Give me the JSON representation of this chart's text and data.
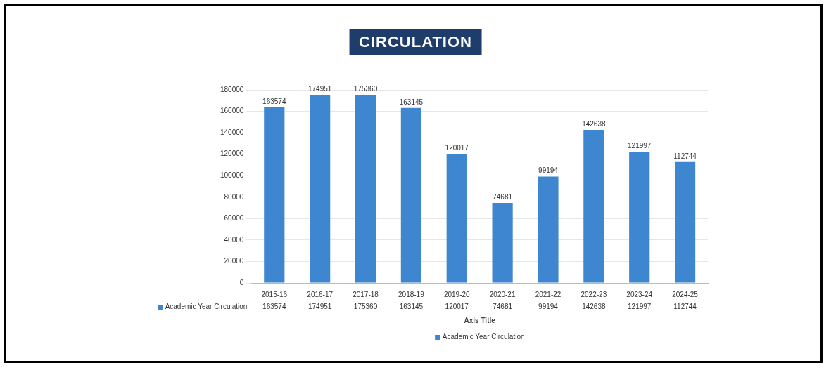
{
  "chart_data": {
    "type": "bar",
    "title": "CIRCULATION",
    "xlabel": "Axis Title",
    "categories": [
      "2015-16",
      "2016-17",
      "2017-18",
      "2018-19",
      "2019-20",
      "2020-21",
      "2021-22",
      "2022-23",
      "2023-24",
      "2024-25"
    ],
    "series": [
      {
        "name": "Academic Year Circulation",
        "color": "#3f86d0",
        "values": [
          163574,
          174951,
          175360,
          163145,
          120017,
          74681,
          99194,
          142638,
          121997,
          112744
        ],
        "value_labels": [
          "163574",
          "174951",
          "175360",
          "163145",
          "120017",
          "74681",
          "99194",
          "142638",
          "121997",
          "112744"
        ]
      }
    ],
    "annotations": [
      "163574",
      "174951",
      "175360",
      "163145",
      "120017",
      "74681",
      "99194",
      "142638",
      "121997",
      "112744"
    ],
    "ylim": [
      0,
      180000
    ],
    "yticks": [
      0,
      20000,
      40000,
      60000,
      80000,
      100000,
      120000,
      140000,
      160000,
      180000
    ],
    "grid": "y",
    "legend": "bottom",
    "data_labels": true
  }
}
